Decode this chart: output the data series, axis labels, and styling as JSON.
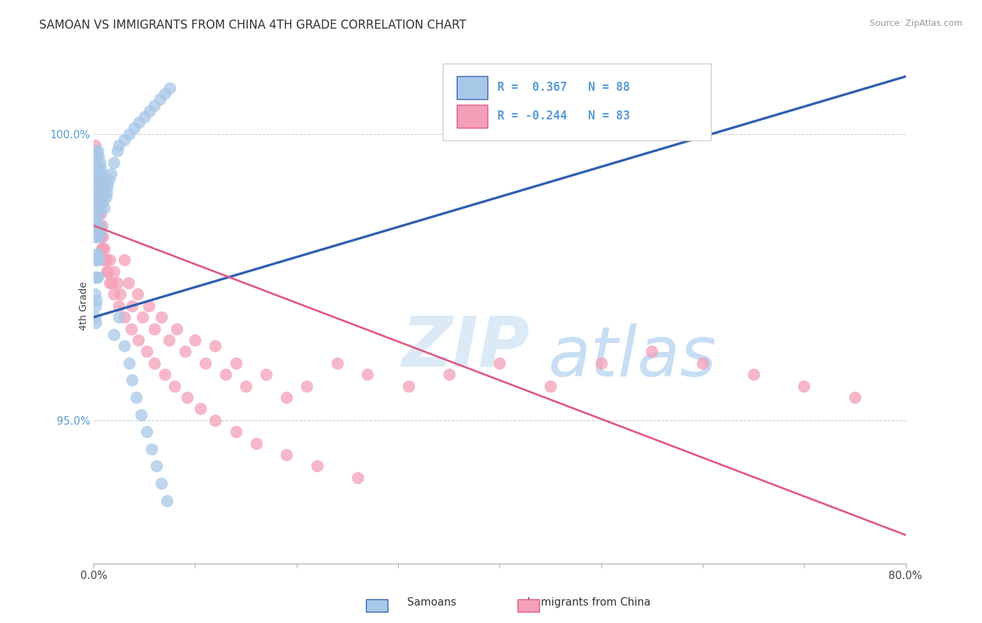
{
  "title": "SAMOAN VS IMMIGRANTS FROM CHINA 4TH GRADE CORRELATION CHART",
  "source": "Source: ZipAtlas.com",
  "ylabel": "4th Grade",
  "legend_label1": "Samoans",
  "legend_label2": "Immigrants from China",
  "r1": 0.367,
  "n1": 88,
  "r2": -0.244,
  "n2": 83,
  "xmin": 0.0,
  "xmax": 0.8,
  "ymin": 0.925,
  "ymax": 1.015,
  "yticks": [
    0.95,
    1.0
  ],
  "ytick_labels": [
    "95.0%",
    "100.0%"
  ],
  "xticks": [
    0.0,
    0.1,
    0.2,
    0.3,
    0.4,
    0.5,
    0.6,
    0.7,
    0.8
  ],
  "xtick_labels": [
    "0.0%",
    "",
    "",
    "",
    "",
    "",
    "",
    "",
    "80.0%"
  ],
  "color_blue": "#A8C8E8",
  "color_pink": "#F4A0B8",
  "color_blue_line": "#3060B0",
  "color_pink_line": "#E05880",
  "color_ytick": "#5B9BD5",
  "watermark_color": "#D8E8F5",
  "figwidth": 14.06,
  "figheight": 8.92,
  "dpi": 100,
  "blue_x": [
    0.0,
    0.0,
    0.001,
    0.001,
    0.001,
    0.001,
    0.001,
    0.001,
    0.001,
    0.001,
    0.001,
    0.001,
    0.002,
    0.002,
    0.002,
    0.002,
    0.002,
    0.002,
    0.002,
    0.002,
    0.002,
    0.002,
    0.003,
    0.003,
    0.003,
    0.003,
    0.003,
    0.003,
    0.003,
    0.003,
    0.004,
    0.004,
    0.004,
    0.004,
    0.004,
    0.004,
    0.004,
    0.005,
    0.005,
    0.005,
    0.005,
    0.005,
    0.005,
    0.006,
    0.006,
    0.006,
    0.006,
    0.007,
    0.007,
    0.007,
    0.007,
    0.008,
    0.008,
    0.009,
    0.009,
    0.01,
    0.01,
    0.011,
    0.012,
    0.013,
    0.014,
    0.015,
    0.017,
    0.02,
    0.023,
    0.025,
    0.03,
    0.035,
    0.04,
    0.045,
    0.05,
    0.055,
    0.06,
    0.065,
    0.07,
    0.075,
    0.02,
    0.025,
    0.03,
    0.035,
    0.038,
    0.042,
    0.047,
    0.052,
    0.057,
    0.062,
    0.067,
    0.072
  ],
  "blue_y": [
    0.987,
    0.984,
    0.995,
    0.992,
    0.99,
    0.988,
    0.985,
    0.982,
    0.978,
    0.975,
    0.972,
    0.968,
    0.997,
    0.994,
    0.991,
    0.988,
    0.985,
    0.982,
    0.978,
    0.975,
    0.97,
    0.967,
    0.996,
    0.993,
    0.99,
    0.987,
    0.983,
    0.979,
    0.975,
    0.971,
    0.997,
    0.994,
    0.991,
    0.987,
    0.983,
    0.979,
    0.975,
    0.996,
    0.993,
    0.99,
    0.986,
    0.982,
    0.978,
    0.995,
    0.992,
    0.988,
    0.984,
    0.994,
    0.991,
    0.987,
    0.983,
    0.993,
    0.989,
    0.992,
    0.988,
    0.991,
    0.987,
    0.99,
    0.989,
    0.99,
    0.991,
    0.992,
    0.993,
    0.995,
    0.997,
    0.998,
    0.999,
    1.0,
    1.001,
    1.002,
    1.003,
    1.004,
    1.005,
    1.006,
    1.007,
    1.008,
    0.965,
    0.968,
    0.963,
    0.96,
    0.957,
    0.954,
    0.951,
    0.948,
    0.945,
    0.942,
    0.939,
    0.936
  ],
  "pink_x": [
    0.001,
    0.001,
    0.001,
    0.002,
    0.002,
    0.002,
    0.003,
    0.003,
    0.003,
    0.004,
    0.004,
    0.005,
    0.005,
    0.006,
    0.006,
    0.007,
    0.007,
    0.008,
    0.008,
    0.009,
    0.01,
    0.012,
    0.014,
    0.016,
    0.018,
    0.02,
    0.023,
    0.026,
    0.03,
    0.034,
    0.038,
    0.043,
    0.048,
    0.054,
    0.06,
    0.067,
    0.074,
    0.082,
    0.09,
    0.1,
    0.11,
    0.12,
    0.13,
    0.14,
    0.15,
    0.17,
    0.19,
    0.21,
    0.24,
    0.27,
    0.31,
    0.35,
    0.4,
    0.45,
    0.5,
    0.55,
    0.6,
    0.65,
    0.7,
    0.75,
    0.004,
    0.006,
    0.008,
    0.01,
    0.013,
    0.016,
    0.02,
    0.025,
    0.03,
    0.037,
    0.044,
    0.052,
    0.06,
    0.07,
    0.08,
    0.092,
    0.105,
    0.12,
    0.14,
    0.16,
    0.19,
    0.22,
    0.26
  ],
  "pink_y": [
    0.998,
    0.994,
    0.99,
    0.996,
    0.992,
    0.988,
    0.994,
    0.99,
    0.986,
    0.992,
    0.988,
    0.99,
    0.986,
    0.988,
    0.984,
    0.986,
    0.982,
    0.984,
    0.98,
    0.982,
    0.98,
    0.978,
    0.976,
    0.978,
    0.974,
    0.976,
    0.974,
    0.972,
    0.978,
    0.974,
    0.97,
    0.972,
    0.968,
    0.97,
    0.966,
    0.968,
    0.964,
    0.966,
    0.962,
    0.964,
    0.96,
    0.963,
    0.958,
    0.96,
    0.956,
    0.958,
    0.954,
    0.956,
    0.96,
    0.958,
    0.956,
    0.958,
    0.96,
    0.956,
    0.96,
    0.962,
    0.96,
    0.958,
    0.956,
    0.954,
    0.984,
    0.982,
    0.98,
    0.978,
    0.976,
    0.974,
    0.972,
    0.97,
    0.968,
    0.966,
    0.964,
    0.962,
    0.96,
    0.958,
    0.956,
    0.954,
    0.952,
    0.95,
    0.948,
    0.946,
    0.944,
    0.942,
    0.94
  ],
  "blue_line_x": [
    0.0,
    0.8
  ],
  "blue_line_y": [
    0.968,
    1.01
  ],
  "pink_line_x": [
    0.0,
    0.8
  ],
  "pink_line_y": [
    0.984,
    0.93
  ]
}
